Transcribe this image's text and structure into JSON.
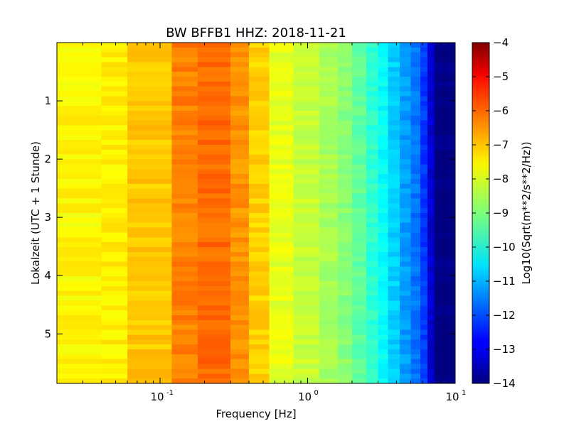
{
  "chart_data": {
    "type": "heatmap",
    "title": "BW BFFB1 HHZ: 2018-11-21",
    "xlabel": "Frequency [Hz]",
    "ylabel": "Lokalzeit (UTC + 1 Stunde)",
    "x_scale": "log",
    "xlim": [
      0.02,
      10
    ],
    "ylim": [
      5.85,
      0
    ],
    "x_ticks": [
      {
        "value": 0.1,
        "base": "10",
        "exp": "-1"
      },
      {
        "value": 1,
        "base": "10",
        "exp": "0"
      },
      {
        "value": 10,
        "base": "10",
        "exp": "1"
      }
    ],
    "y_ticks": [
      {
        "value": 1,
        "label": "1"
      },
      {
        "value": 2,
        "label": "2"
      },
      {
        "value": 3,
        "label": "3"
      },
      {
        "value": 4,
        "label": "4"
      },
      {
        "value": 5,
        "label": "5"
      }
    ],
    "colormap": "jet",
    "colorbar": {
      "label": "Log10(Sqrt(m**2/s**2/Hz))",
      "range": [
        -14,
        -4
      ],
      "ticks": [
        {
          "value": -4,
          "label": "−4"
        },
        {
          "value": -5,
          "label": "−5"
        },
        {
          "value": -6,
          "label": "−6"
        },
        {
          "value": -7,
          "label": "−7"
        },
        {
          "value": -8,
          "label": "−8"
        },
        {
          "value": -9,
          "label": "−9"
        },
        {
          "value": -10,
          "label": "−10"
        },
        {
          "value": -11,
          "label": "−11"
        },
        {
          "value": -12,
          "label": "−12"
        },
        {
          "value": -13,
          "label": "−13"
        },
        {
          "value": -14,
          "label": "−14"
        }
      ]
    },
    "frequency_bands": [
      {
        "f_start": 0.02,
        "f_end": 0.04,
        "value": -7.7
      },
      {
        "f_start": 0.04,
        "f_end": 0.06,
        "value": -7.6
      },
      {
        "f_start": 0.06,
        "f_end": 0.12,
        "value": -7.2
      },
      {
        "f_start": 0.12,
        "f_end": 0.18,
        "value": -6.5
      },
      {
        "f_start": 0.18,
        "f_end": 0.3,
        "value": -6.3
      },
      {
        "f_start": 0.3,
        "f_end": 0.4,
        "value": -6.7
      },
      {
        "f_start": 0.4,
        "f_end": 0.55,
        "value": -7.3
      },
      {
        "f_start": 0.55,
        "f_end": 0.8,
        "value": -8.0
      },
      {
        "f_start": 0.8,
        "f_end": 1.2,
        "value": -8.3
      },
      {
        "f_start": 1.2,
        "f_end": 1.6,
        "value": -8.6
      },
      {
        "f_start": 1.6,
        "f_end": 2.0,
        "value": -8.9
      },
      {
        "f_start": 2.0,
        "f_end": 2.5,
        "value": -9.3
      },
      {
        "f_start": 2.5,
        "f_end": 3.0,
        "value": -9.8
      },
      {
        "f_start": 3.0,
        "f_end": 3.5,
        "value": -10.2
      },
      {
        "f_start": 3.5,
        "f_end": 4.2,
        "value": -10.7
      },
      {
        "f_start": 4.2,
        "f_end": 5.0,
        "value": -11.2
      },
      {
        "f_start": 5.0,
        "f_end": 5.8,
        "value": -11.6
      },
      {
        "f_start": 5.8,
        "f_end": 6.5,
        "value": -12.2
      },
      {
        "f_start": 6.5,
        "f_end": 7.2,
        "value": -13.2
      },
      {
        "f_start": 7.2,
        "f_end": 10,
        "value": -14.0
      }
    ],
    "time_rows": 70,
    "grid": false
  }
}
